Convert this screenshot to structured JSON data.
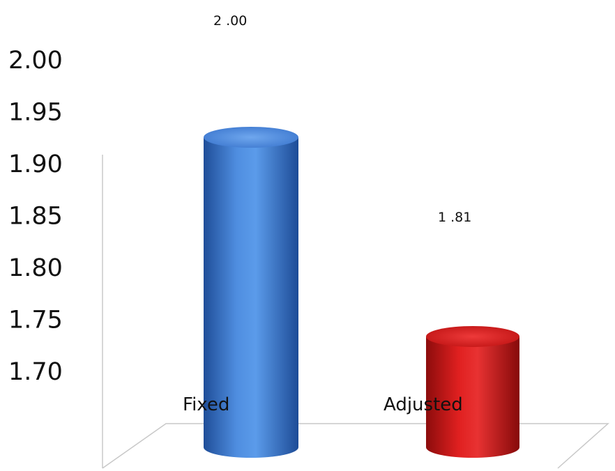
{
  "chart_data": {
    "type": "bar",
    "title": "",
    "xlabel": "",
    "ylabel": "",
    "categories": [
      "Fixed",
      "Adjusted"
    ],
    "values": [
      2.0,
      1.81
    ],
    "data_labels": [
      "2 .00",
      "1 .81"
    ],
    "y_ticks": [
      "1.70",
      "1.75",
      "1.80",
      "1.85",
      "1.90",
      "1.95",
      "2.00"
    ],
    "ylim": [
      1.7,
      2.0
    ],
    "grid": false,
    "legend": "none",
    "bar_style": "3d-cylinder",
    "colors": [
      "#3a72c8",
      "#d11818"
    ]
  }
}
